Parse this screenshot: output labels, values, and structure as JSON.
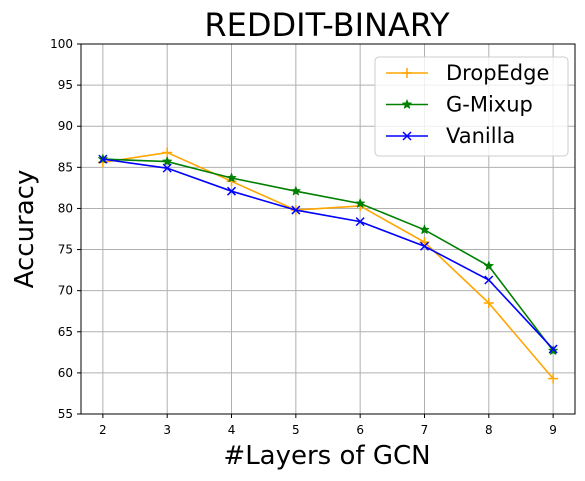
{
  "chart_data": {
    "type": "line",
    "title": "REDDIT-BINARY",
    "xlabel": "#Layers of GCN",
    "ylabel": "Accuracy",
    "x": [
      2,
      3,
      4,
      5,
      6,
      7,
      8,
      9
    ],
    "xticks": [
      "2",
      "3",
      "4",
      "5",
      "6",
      "7",
      "8",
      "9"
    ],
    "yticks": [
      "55",
      "60",
      "65",
      "70",
      "75",
      "80",
      "85",
      "90",
      "95",
      "100"
    ],
    "xlim": [
      1.66,
      9.34
    ],
    "ylim": [
      55,
      100
    ],
    "grid": true,
    "legend_position": "top-right",
    "series": [
      {
        "name": "DropEdge",
        "color": "#ffa500",
        "marker": "plus",
        "values": [
          85.6,
          86.8,
          83.3,
          79.8,
          80.3,
          75.9,
          68.5,
          59.3
        ]
      },
      {
        "name": "G-Mixup",
        "color": "#008000",
        "marker": "star",
        "values": [
          86.0,
          85.7,
          83.7,
          82.1,
          80.6,
          77.4,
          73.0,
          62.7
        ]
      },
      {
        "name": "Vanilla",
        "color": "#0000ff",
        "marker": "x",
        "values": [
          86.0,
          84.9,
          82.1,
          79.8,
          78.4,
          75.4,
          71.3,
          62.9
        ]
      }
    ]
  }
}
